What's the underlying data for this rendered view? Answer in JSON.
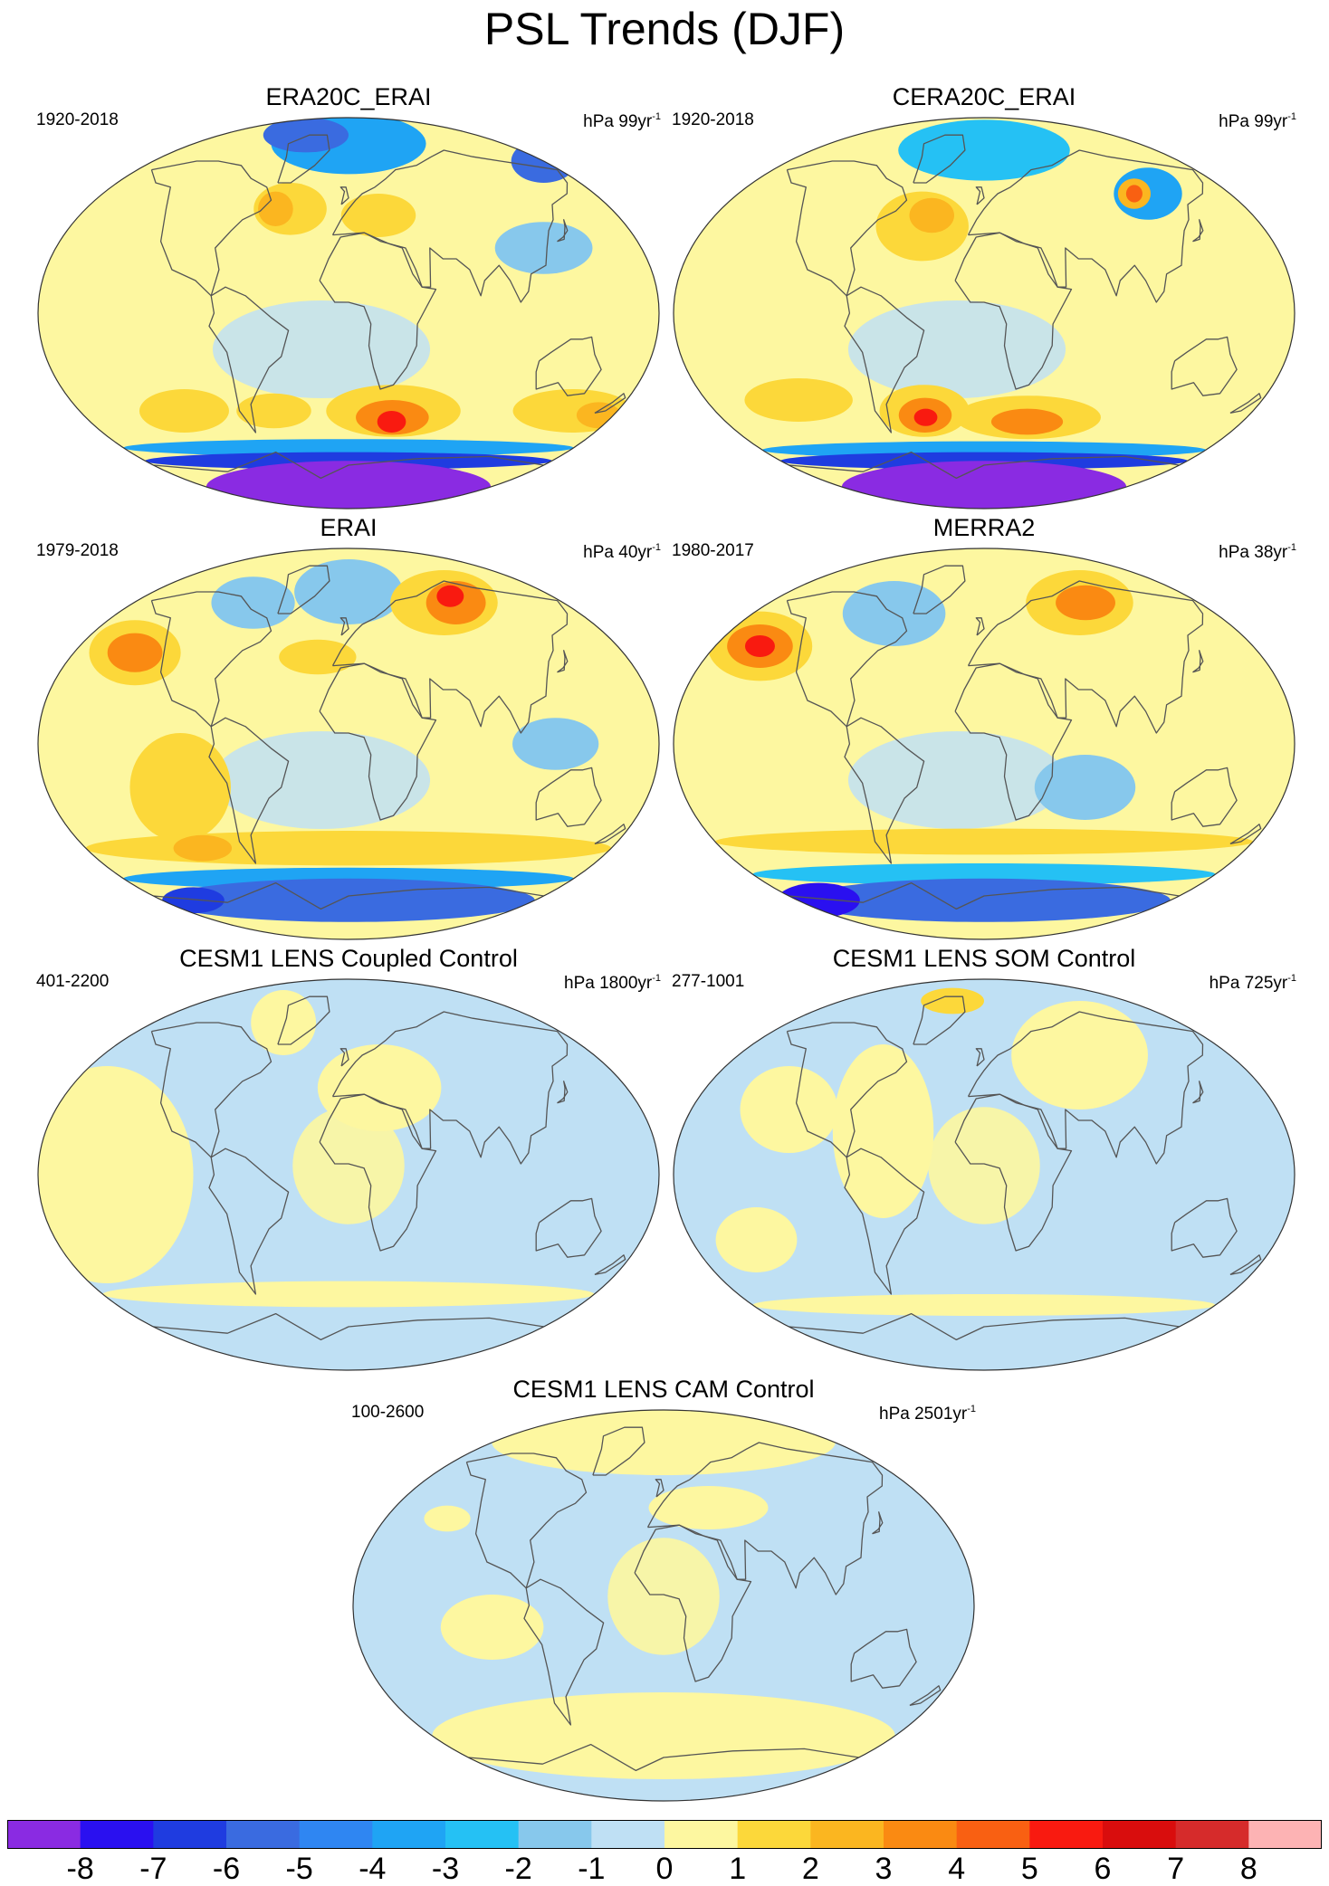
{
  "figure": {
    "title": "PSL Trends (DJF)"
  },
  "palette": {
    "ocean_zero_neg": "#bfe0f4",
    "ocean_zero_pos": "#fdf7a0",
    "levels": [
      {
        "value": -8,
        "color": "#8a2be2"
      },
      {
        "value": -7,
        "color": "#2a10f0"
      },
      {
        "value": -6,
        "color": "#1f3ce0"
      },
      {
        "value": -5,
        "color": "#3a6be0"
      },
      {
        "value": -4,
        "color": "#2f86f2"
      },
      {
        "value": -3,
        "color": "#1fa4f4"
      },
      {
        "value": -2,
        "color": "#25c1f4"
      },
      {
        "value": -1,
        "color": "#87c8ec"
      },
      {
        "value": 0,
        "color": "#bfe0f4"
      },
      {
        "value": 1,
        "color": "#fdf7a0"
      },
      {
        "value": 2,
        "color": "#fcd83a"
      },
      {
        "value": 3,
        "color": "#fbb620"
      },
      {
        "value": 4,
        "color": "#fa8a12"
      },
      {
        "value": 5,
        "color": "#f96012"
      },
      {
        "value": 6,
        "color": "#f91a10"
      },
      {
        "value": 7,
        "color": "#d90d0d"
      },
      {
        "value": 8,
        "color": "#d62b2b"
      },
      {
        "value": null,
        "color": "#fdb3b4"
      }
    ],
    "coast_color": "#555555"
  },
  "colorbar": {
    "labels": [
      "-8",
      "-7",
      "-6",
      "-5",
      "-4",
      "-3",
      "-2",
      "-1",
      "0",
      "1",
      "2",
      "3",
      "4",
      "5",
      "6",
      "7",
      "8"
    ]
  },
  "panels": [
    {
      "id": "era20c-erai",
      "title": "ERA20C_ERAI",
      "years": "1920-2018",
      "units": "hPa 99yr",
      "units_exp": "-1",
      "base": "pos",
      "features": [
        {
          "lon": 0,
          "lat": 78,
          "rx": 90,
          "ry": 14,
          "level": -3
        },
        {
          "lon": -60,
          "lat": 82,
          "rx": 60,
          "ry": 8,
          "level": -5
        },
        {
          "lon": 180,
          "lat": 70,
          "rx": 30,
          "ry": 10,
          "level": -5
        },
        {
          "lon": 120,
          "lat": 30,
          "rx": 30,
          "ry": 12,
          "level": -1
        },
        {
          "lon": -40,
          "lat": 48,
          "rx": 25,
          "ry": 12,
          "level": 2
        },
        {
          "lon": -50,
          "lat": 48,
          "rx": 12,
          "ry": 8,
          "level": 3
        },
        {
          "lon": 20,
          "lat": 45,
          "rx": 25,
          "ry": 10,
          "level": 2
        },
        {
          "lon": 30,
          "lat": -45,
          "rx": 45,
          "ry": 12,
          "level": 2
        },
        {
          "lon": 30,
          "lat": -48,
          "rx": 25,
          "ry": 8,
          "level": 4
        },
        {
          "lon": 30,
          "lat": -50,
          "rx": 10,
          "ry": 5,
          "level": 6
        },
        {
          "lon": 150,
          "lat": -45,
          "rx": 40,
          "ry": 10,
          "level": 2
        },
        {
          "lon": 170,
          "lat": -47,
          "rx": 15,
          "ry": 6,
          "level": 3
        },
        {
          "lon": -110,
          "lat": -45,
          "rx": 30,
          "ry": 10,
          "level": 2
        },
        {
          "lon": -50,
          "lat": -45,
          "rx": 25,
          "ry": 8,
          "level": 2
        },
        {
          "lon": 0,
          "lat": -62,
          "rx": 180,
          "ry": 4,
          "level": -3
        },
        {
          "lon": 0,
          "lat": -68,
          "rx": 180,
          "ry": 4,
          "level": -6
        },
        {
          "lon": 0,
          "lat": -80,
          "rx": 180,
          "ry": 12,
          "level": -8
        }
      ]
    },
    {
      "id": "cera20c-erai",
      "title": "CERA20C_ERAI",
      "years": "1920-2018",
      "units": "hPa 99yr",
      "units_exp": "-1",
      "base": "pos",
      "features": [
        {
          "lon": 0,
          "lat": 75,
          "rx": 90,
          "ry": 14,
          "level": -2
        },
        {
          "lon": 120,
          "lat": 55,
          "rx": 25,
          "ry": 12,
          "level": -3
        },
        {
          "lon": 110,
          "lat": 55,
          "rx": 12,
          "ry": 7,
          "level": 3
        },
        {
          "lon": 110,
          "lat": 55,
          "rx": 6,
          "ry": 4,
          "level": 5
        },
        {
          "lon": -40,
          "lat": 40,
          "rx": 30,
          "ry": 16,
          "level": 2
        },
        {
          "lon": -35,
          "lat": 45,
          "rx": 15,
          "ry": 8,
          "level": 3
        },
        {
          "lon": 30,
          "lat": -48,
          "rx": 50,
          "ry": 10,
          "level": 2
        },
        {
          "lon": 30,
          "lat": -50,
          "rx": 25,
          "ry": 6,
          "level": 4
        },
        {
          "lon": -120,
          "lat": -40,
          "rx": 35,
          "ry": 10,
          "level": 2
        },
        {
          "lon": -40,
          "lat": -45,
          "rx": 30,
          "ry": 12,
          "level": 2
        },
        {
          "lon": -40,
          "lat": -47,
          "rx": 18,
          "ry": 8,
          "level": 4
        },
        {
          "lon": -40,
          "lat": -48,
          "rx": 8,
          "ry": 4,
          "level": 6
        },
        {
          "lon": 0,
          "lat": -63,
          "rx": 180,
          "ry": 4,
          "level": -3
        },
        {
          "lon": 0,
          "lat": -68,
          "rx": 180,
          "ry": 4,
          "level": -6
        },
        {
          "lon": 0,
          "lat": -80,
          "rx": 180,
          "ry": 12,
          "level": -8
        }
      ]
    },
    {
      "id": "erai",
      "title": "ERAI",
      "years": "1979-2018",
      "units": "hPa 40yr",
      "units_exp": "-1",
      "base": "pos",
      "features": [
        {
          "lon": 0,
          "lat": 70,
          "rx": 50,
          "ry": 15,
          "level": -1
        },
        {
          "lon": 80,
          "lat": 65,
          "rx": 45,
          "ry": 15,
          "level": 2
        },
        {
          "lon": 90,
          "lat": 65,
          "rx": 25,
          "ry": 10,
          "level": 4
        },
        {
          "lon": 90,
          "lat": 68,
          "rx": 12,
          "ry": 5,
          "level": 6
        },
        {
          "lon": -140,
          "lat": 42,
          "rx": 30,
          "ry": 15,
          "level": 2
        },
        {
          "lon": -140,
          "lat": 42,
          "rx": 18,
          "ry": 9,
          "level": 4
        },
        {
          "lon": -80,
          "lat": 65,
          "rx": 35,
          "ry": 12,
          "level": -1
        },
        {
          "lon": -20,
          "lat": 40,
          "rx": 25,
          "ry": 8,
          "level": 2
        },
        {
          "lon": 120,
          "lat": 0,
          "rx": 25,
          "ry": 12,
          "level": -1
        },
        {
          "lon": -100,
          "lat": -20,
          "rx": 30,
          "ry": 25,
          "level": 2
        },
        {
          "lon": 0,
          "lat": -48,
          "rx": 180,
          "ry": 8,
          "level": 2
        },
        {
          "lon": -100,
          "lat": -48,
          "rx": 20,
          "ry": 6,
          "level": 3
        },
        {
          "lon": 0,
          "lat": -62,
          "rx": 180,
          "ry": 5,
          "level": -3
        },
        {
          "lon": 0,
          "lat": -72,
          "rx": 180,
          "ry": 10,
          "level": -5
        },
        {
          "lon": -150,
          "lat": -72,
          "rx": 30,
          "ry": 6,
          "level": -6
        }
      ]
    },
    {
      "id": "merra2",
      "title": "MERRA2",
      "years": "1980-2017",
      "units": "hPa 38yr",
      "units_exp": "-1",
      "base": "pos",
      "features": [
        {
          "lon": 80,
          "lat": 65,
          "rx": 45,
          "ry": 15,
          "level": 2
        },
        {
          "lon": 85,
          "lat": 65,
          "rx": 25,
          "ry": 8,
          "level": 4
        },
        {
          "lon": -150,
          "lat": 45,
          "rx": 35,
          "ry": 16,
          "level": 2
        },
        {
          "lon": -150,
          "lat": 45,
          "rx": 22,
          "ry": 10,
          "level": 4
        },
        {
          "lon": -150,
          "lat": 45,
          "rx": 10,
          "ry": 5,
          "level": 6
        },
        {
          "lon": -70,
          "lat": 60,
          "rx": 40,
          "ry": 15,
          "level": -1
        },
        {
          "lon": 60,
          "lat": -20,
          "rx": 30,
          "ry": 15,
          "level": -1
        },
        {
          "lon": 0,
          "lat": -45,
          "rx": 180,
          "ry": 6,
          "level": 2
        },
        {
          "lon": 0,
          "lat": -60,
          "rx": 180,
          "ry": 5,
          "level": -2
        },
        {
          "lon": 0,
          "lat": -72,
          "rx": 180,
          "ry": 10,
          "level": -5
        },
        {
          "lon": -160,
          "lat": -72,
          "rx": 40,
          "ry": 8,
          "level": -7
        }
      ]
    },
    {
      "id": "cesm1-coupled",
      "title": "CESM1 LENS Coupled Control",
      "years": "401-2200",
      "units": "hPa 1800yr",
      "units_exp": "-1",
      "base": "neg",
      "features": [
        {
          "lon": -140,
          "lat": 0,
          "rx": 50,
          "ry": 50,
          "level": 1
        },
        {
          "lon": 20,
          "lat": 40,
          "rx": 40,
          "ry": 20,
          "level": 1
        },
        {
          "lon": -60,
          "lat": 70,
          "rx": 30,
          "ry": 15,
          "level": 1
        },
        {
          "lon": 0,
          "lat": -55,
          "rx": 180,
          "ry": 6,
          "level": 1
        }
      ]
    },
    {
      "id": "cesm1-som",
      "title": "CESM1 LENS SOM Control",
      "years": "277-1001",
      "units": "hPa 725yr",
      "units_exp": "-1",
      "base": "neg",
      "features": [
        {
          "lon": -60,
          "lat": 20,
          "rx": 30,
          "ry": 40,
          "level": 1
        },
        {
          "lon": 70,
          "lat": 55,
          "rx": 50,
          "ry": 25,
          "level": 1
        },
        {
          "lon": -120,
          "lat": 30,
          "rx": 30,
          "ry": 20,
          "level": 1
        },
        {
          "lon": -40,
          "lat": 80,
          "rx": 40,
          "ry": 6,
          "level": 2
        },
        {
          "lon": 0,
          "lat": -60,
          "rx": 180,
          "ry": 5,
          "level": 1
        },
        {
          "lon": -140,
          "lat": -30,
          "rx": 25,
          "ry": 15,
          "level": 1
        }
      ]
    },
    {
      "id": "cesm1-cam",
      "title": "CESM1 LENS CAM Control",
      "years": "100-2600",
      "units": "hPa 2501yr",
      "units_exp": "-1",
      "base": "neg",
      "features": [
        {
          "lon": 0,
          "lat": 75,
          "rx": 180,
          "ry": 15,
          "level": 1
        },
        {
          "lon": 30,
          "lat": 45,
          "rx": 40,
          "ry": 10,
          "level": 1
        },
        {
          "lon": -140,
          "lat": 40,
          "rx": 15,
          "ry": 6,
          "level": 1
        },
        {
          "lon": -100,
          "lat": -10,
          "rx": 30,
          "ry": 15,
          "level": 1
        },
        {
          "lon": 0,
          "lat": -60,
          "rx": 180,
          "ry": 20,
          "level": 1
        }
      ]
    }
  ]
}
